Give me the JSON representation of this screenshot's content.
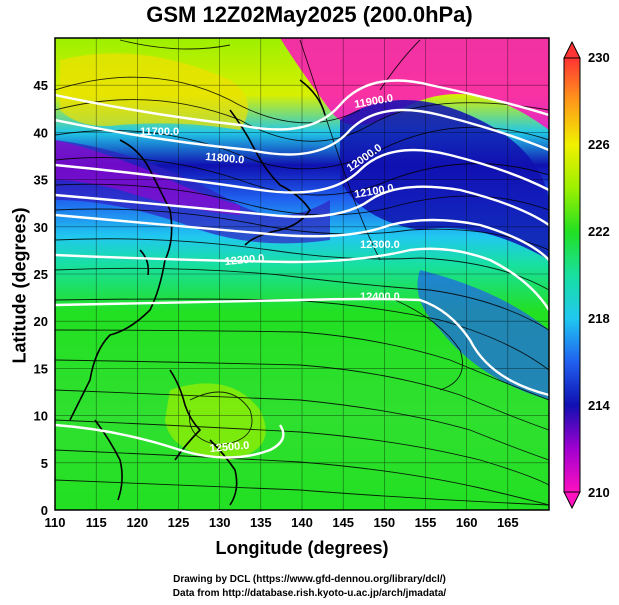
{
  "title": "GSM 12Z02May2025 (200.0hPa)",
  "footer": {
    "line1": "Drawing by DCL (https://www.gfd-dennou.org/library/dcl/)",
    "line2": "Data from http://database.rish.kyoto-u.ac.jp/arch/jmadata/"
  },
  "axes": {
    "xlabel": "Longitude (degrees)",
    "ylabel": "Latitude  (degrees)",
    "x_ticks": [
      "110",
      "115",
      "120",
      "125",
      "130",
      "135",
      "140",
      "145",
      "150",
      "155",
      "160",
      "165"
    ],
    "y_ticks": [
      "0",
      "5",
      "10",
      "15",
      "20",
      "25",
      "30",
      "35",
      "40",
      "45"
    ],
    "xlim": [
      110,
      170
    ],
    "ylim": [
      0,
      50
    ]
  },
  "colorbar": {
    "ticks": [
      "230",
      "226",
      "222",
      "218",
      "214",
      "210"
    ],
    "range": [
      210,
      230
    ],
    "colors": [
      "#ff3333",
      "#ff9a1a",
      "#f0f000",
      "#9cf000",
      "#22e022",
      "#18e0a0",
      "#20c8f0",
      "#2060f0",
      "#1010b0",
      "#a000d0",
      "#ff10c0"
    ]
  },
  "contour_labels": [
    "11900.0",
    "12000.0",
    "11700.0",
    "11800.0",
    "12100.0",
    "12200.0",
    "12300.0",
    "12400.0",
    "12500.0"
  ]
}
